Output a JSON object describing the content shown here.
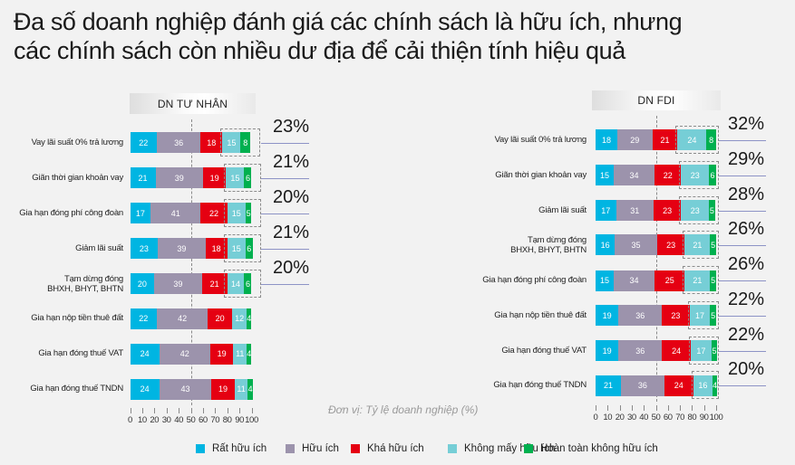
{
  "title": {
    "line1": "Đa số doanh nghiệp đánh giá các chính sách là hữu ích, nhưng",
    "line2": "các chính sách còn nhiều dư địa để cải thiện tính hiệu quả"
  },
  "unit_note": "Đơn vị: Tỷ lệ doanh nghiệp (%)",
  "legend": [
    {
      "label": "Rất hữu ích",
      "color": "#00b5e2"
    },
    {
      "label": "Hữu ích",
      "color": "#9c93ac"
    },
    {
      "label": "Khá hữu ích",
      "color": "#e50012"
    },
    {
      "label": "Không mấy hữu ích",
      "color": "#76ced6"
    },
    {
      "label": "Hoàn toàn không hữu ích",
      "color": "#00b04f"
    }
  ],
  "chart_data": [
    {
      "type": "bar",
      "orientation": "horizontal",
      "stacked": true,
      "title": "DN TƯ NHÂN",
      "xlabel": "",
      "ylabel": "",
      "xlim": [
        0,
        100
      ],
      "xticks": [
        "0",
        "10",
        "20",
        "30",
        "40",
        "50",
        "60",
        "70",
        "80",
        "90",
        "100"
      ],
      "grid": false,
      "categories": [
        "Vay lãi suất 0% trả lương",
        "Giãn thời gian khoản vay",
        "Gia hạn đóng phí công đoàn",
        "Giảm lãi suất",
        "Tạm dừng đóng\nBHXH, BHYT, BHTN",
        "Gia hạn nộp tiền thuê đất",
        "Gia hạn đóng thuế VAT",
        "Gia hạn đóng thuế TNDN"
      ],
      "series": [
        {
          "name": "Rất hữu ích",
          "color": "#00b5e2",
          "values": [
            22,
            21,
            17,
            23,
            20,
            22,
            24,
            24
          ]
        },
        {
          "name": "Hữu ích",
          "color": "#9c93ac",
          "values": [
            36,
            39,
            41,
            39,
            39,
            42,
            42,
            43
          ]
        },
        {
          "name": "Khá hữu ích",
          "color": "#e50012",
          "values": [
            18,
            19,
            22,
            18,
            21,
            20,
            19,
            19
          ]
        },
        {
          "name": "Không mấy hữu ích",
          "color": "#76ced6",
          "values": [
            15,
            15,
            15,
            15,
            14,
            12,
            11,
            11
          ]
        },
        {
          "name": "Hoàn toàn không hữu ích",
          "color": "#00b04f",
          "values": [
            8,
            6,
            5,
            6,
            6,
            4,
            4,
            4
          ]
        }
      ],
      "highlight_totals": [
        "23%",
        "21%",
        "20%",
        "21%",
        "20%",
        null,
        null,
        null
      ]
    },
    {
      "type": "bar",
      "orientation": "horizontal",
      "stacked": true,
      "title": "DN FDI",
      "xlabel": "",
      "ylabel": "",
      "xlim": [
        0,
        100
      ],
      "xticks": [
        "0",
        "10",
        "20",
        "30",
        "40",
        "50",
        "60",
        "70",
        "80",
        "90",
        "100"
      ],
      "grid": false,
      "categories": [
        "Vay lãi suất 0% trả lương",
        "Giãn thời gian khoản vay",
        "Giảm lãi suất",
        "Tạm dừng đóng\nBHXH, BHYT, BHTN",
        "Gia hạn đóng phí công đoàn",
        "Gia hạn nộp tiền thuê đất",
        "Gia hạn đóng thuế VAT",
        "Gia hạn đóng thuế TNDN"
      ],
      "series": [
        {
          "name": "Rất hữu ích",
          "color": "#00b5e2",
          "values": [
            18,
            15,
            17,
            16,
            15,
            19,
            19,
            21
          ]
        },
        {
          "name": "Hữu ích",
          "color": "#9c93ac",
          "values": [
            29,
            34,
            31,
            35,
            34,
            36,
            36,
            36
          ]
        },
        {
          "name": "Khá hữu ích",
          "color": "#e50012",
          "values": [
            21,
            22,
            23,
            23,
            25,
            23,
            24,
            24
          ]
        },
        {
          "name": "Không mấy hữu ích",
          "color": "#76ced6",
          "values": [
            24,
            23,
            23,
            21,
            21,
            17,
            17,
            16
          ]
        },
        {
          "name": "Hoàn toàn không hữu ích",
          "color": "#00b04f",
          "values": [
            8,
            6,
            5,
            5,
            5,
            5,
            5,
            4
          ]
        }
      ],
      "highlight_totals": [
        "32%",
        "29%",
        "28%",
        "26%",
        "26%",
        "22%",
        "22%",
        "20%"
      ]
    }
  ]
}
